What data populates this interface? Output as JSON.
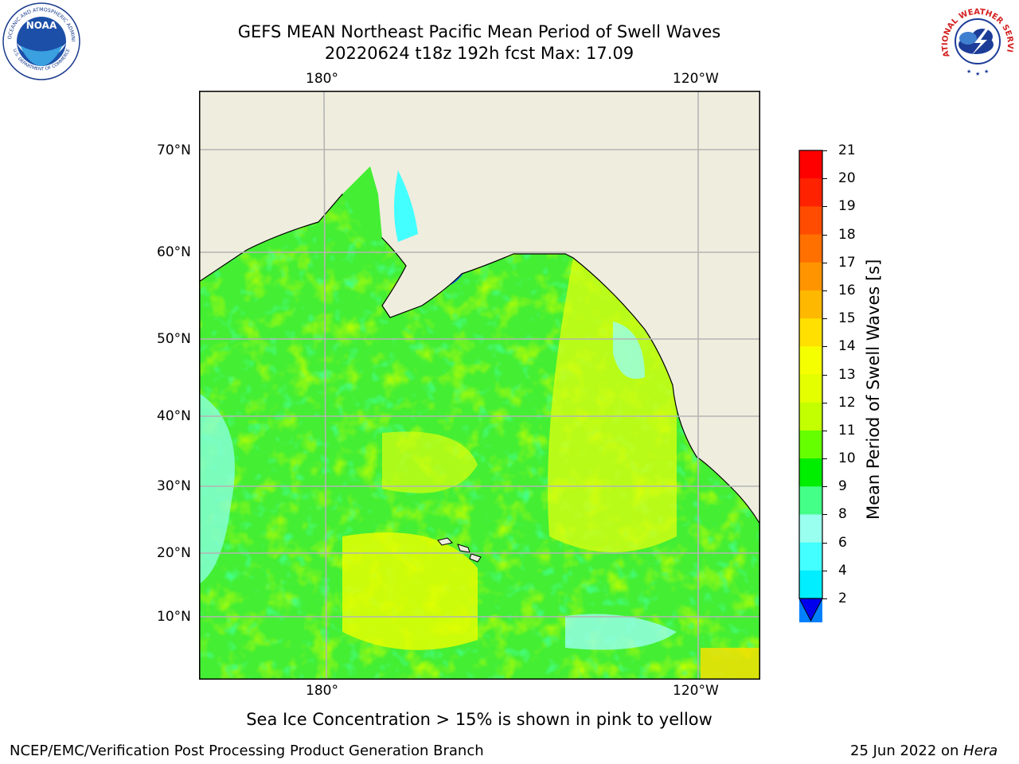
{
  "header": {
    "title_line1": "GEFS MEAN Northeast Pacific Mean Period of Swell Waves",
    "title_line2": "20220624 t18z 192h fcst   Max: 17.09"
  },
  "logos": {
    "noara_text": "NOAA",
    "noaa_ring_top": "NATIONAL OCEANIC AND ATMOSPHERIC ADMINISTRATION",
    "noaa_ring_bottom": "U.S. DEPARTMENT OF COMMERCE",
    "nws_ring": "NATIONAL WEATHER SERVICE"
  },
  "map": {
    "lon_labels_top": [
      "180°",
      "120°W"
    ],
    "lon_labels_bottom": [
      "180°",
      "120°W"
    ],
    "lat_labels": [
      "70°N",
      "60°N",
      "50°N",
      "40°N",
      "30°N",
      "20°N",
      "10°N"
    ],
    "colors": {
      "land": "#efedde",
      "grid": "#b4b4b4",
      "coast": "#000000"
    }
  },
  "colorbar": {
    "label": "Mean Period of Swell Waves [s]",
    "ticks": [
      "21",
      "20",
      "19",
      "18",
      "17",
      "16",
      "15",
      "14",
      "13",
      "12",
      "11",
      "10",
      "9",
      "8",
      "6",
      "4",
      "2"
    ],
    "colors_top_to_bottom": [
      "#ff0000",
      "#ff2200",
      "#ff4c00",
      "#ff7000",
      "#ff9400",
      "#ffb800",
      "#ffe000",
      "#f6ff00",
      "#e4ff00",
      "#c3ff00",
      "#66ff00",
      "#00ee00",
      "#44ff88",
      "#99ffee",
      "#44ffff",
      "#00eeff",
      "#0080ff"
    ],
    "extend_color": "#0000ee"
  },
  "note": "Sea Ice Concentration > 15% is shown in pink to yellow",
  "footer": {
    "left": "NCEP/EMC/Verification Post Processing Product Generation Branch",
    "right_date": "25 Jun 2022 on ",
    "right_host": "Hera"
  }
}
